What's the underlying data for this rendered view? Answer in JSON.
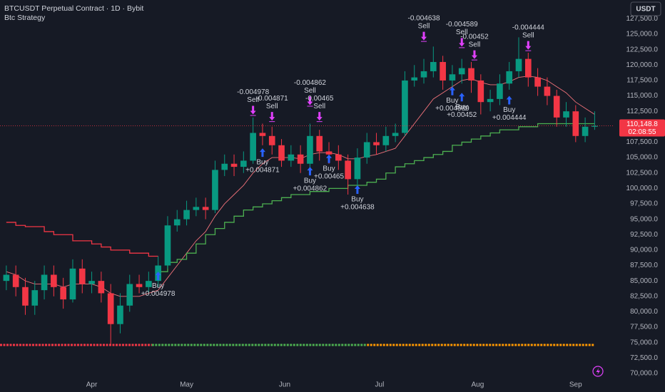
{
  "chart_data": {
    "type": "candlestick",
    "title": "BTCUSDT Perpetual Contract · 1D · Bybit",
    "subtitle": "Btc Strategy",
    "currency": "USDT",
    "x": [
      -27,
      -24,
      -21,
      -18,
      -15,
      -12,
      -9,
      -6,
      -3,
      0,
      3,
      6,
      9,
      12,
      15,
      18,
      21,
      24,
      27,
      30,
      33,
      36,
      39,
      42,
      45,
      48,
      51,
      54,
      57,
      60,
      63,
      66,
      69,
      72,
      75,
      78,
      81,
      84,
      87,
      90,
      93,
      96,
      99,
      102,
      105,
      108,
      111,
      114,
      117,
      120,
      123,
      126,
      129,
      132,
      135,
      138,
      141,
      144,
      147,
      150,
      153,
      156,
      159
    ],
    "open": [
      85000,
      86000,
      84000,
      81000,
      83500,
      86000,
      84000,
      82000,
      87000,
      84500,
      85000,
      83000,
      78000,
      81000,
      84500,
      84000,
      85000,
      87500,
      94000,
      95000,
      96500,
      97000,
      96500,
      103000,
      104000,
      103500,
      104500,
      109000,
      108500,
      107000,
      104500,
      105500,
      104000,
      108500,
      106000,
      105500,
      104500,
      101500,
      105000,
      107500,
      107000,
      108500,
      109000,
      117500,
      118000,
      119000,
      120500,
      117500,
      118500,
      119500,
      117500,
      114000,
      114500,
      117000,
      119000,
      121000,
      118000,
      116500,
      115000,
      111500,
      112500,
      108500,
      110000
    ],
    "high": [
      87500,
      87500,
      85500,
      85000,
      87500,
      87500,
      85500,
      88500,
      88500,
      86500,
      86500,
      84500,
      83000,
      86000,
      86000,
      86500,
      89000,
      95500,
      96500,
      98000,
      98500,
      98500,
      104500,
      105500,
      105500,
      106000,
      111500,
      110500,
      110000,
      108000,
      107000,
      107000,
      110500,
      109500,
      107500,
      107000,
      105500,
      106500,
      109000,
      109000,
      110000,
      110500,
      119000,
      120000,
      121000,
      123000,
      121500,
      120000,
      121000,
      120500,
      118500,
      116000,
      118500,
      120500,
      124500,
      122000,
      119500,
      118000,
      116000,
      114000,
      113500,
      111500,
      112500
    ],
    "low": [
      83500,
      82500,
      79500,
      79500,
      82000,
      82500,
      80500,
      81500,
      83000,
      83000,
      81500,
      74500,
      76500,
      80000,
      83000,
      83000,
      84000,
      87000,
      93000,
      94000,
      95500,
      95000,
      96000,
      102000,
      102000,
      102500,
      104000,
      107000,
      105500,
      103500,
      103500,
      102500,
      103000,
      104500,
      104000,
      103000,
      99000,
      100500,
      104000,
      105500,
      106000,
      107500,
      108500,
      116500,
      117000,
      118000,
      116000,
      116500,
      117000,
      115500,
      112000,
      112500,
      113500,
      116000,
      118000,
      116500,
      115000,
      113500,
      110000,
      110000,
      107500,
      107500,
      109500
    ],
    "close": [
      86000,
      84000,
      81000,
      83500,
      86000,
      84000,
      82000,
      87000,
      84500,
      85000,
      83000,
      78000,
      81000,
      84500,
      84000,
      85000,
      87500,
      94000,
      95000,
      96500,
      97000,
      96500,
      103000,
      104000,
      103500,
      104500,
      109000,
      108500,
      107000,
      104500,
      105500,
      104000,
      108500,
      106000,
      105500,
      104500,
      101500,
      105000,
      107500,
      107000,
      108500,
      109000,
      117500,
      118000,
      119000,
      120500,
      117500,
      118500,
      119500,
      117500,
      114000,
      114500,
      117000,
      119000,
      121000,
      118000,
      116500,
      115000,
      111500,
      112500,
      108500,
      110000,
      110148.8
    ],
    "up_color": "#089981",
    "down_color": "#f23645",
    "lines": [
      {
        "color": "#f0727a",
        "style": "smooth",
        "values": [
          86500,
          86000,
          85000,
          84500,
          84500,
          84500,
          84000,
          84500,
          84500,
          84500,
          84000,
          83000,
          82500,
          82500,
          82500,
          83000,
          83500,
          85500,
          87500,
          89500,
          91500,
          93000,
          95500,
          97500,
          99000,
          100500,
          102500,
          104000,
          105000,
          105000,
          105000,
          104800,
          105500,
          105800,
          105800,
          105500,
          104800,
          104800,
          105200,
          105500,
          106000,
          106500,
          108500,
          110500,
          112500,
          114500,
          115500,
          116500,
          117500,
          117800,
          117200,
          116800,
          116800,
          117300,
          118000,
          118200,
          118000,
          117500,
          116500,
          115500,
          114000,
          113000,
          112000
        ]
      },
      {
        "color": "#f23645",
        "style": "step",
        "values": [
          94500,
          94000,
          93800,
          93800,
          93000,
          92500,
          92500,
          91500,
          91500,
          91000,
          90500,
          90000,
          90000,
          89500,
          89500,
          89000,
          89000,
          null,
          null,
          null,
          null,
          null,
          null,
          null,
          null,
          null,
          null,
          null,
          null,
          null,
          null,
          null,
          null,
          null,
          null,
          null,
          null,
          null,
          null,
          null,
          null,
          null,
          null,
          null,
          null,
          null,
          null,
          null,
          null,
          null,
          null,
          null,
          null,
          null,
          null,
          null,
          null,
          null,
          null,
          null,
          null,
          null,
          null
        ]
      },
      {
        "color": "#4caf50",
        "style": "step",
        "values": [
          null,
          null,
          null,
          null,
          null,
          null,
          null,
          null,
          null,
          null,
          null,
          null,
          null,
          null,
          null,
          null,
          86500,
          88000,
          88500,
          89500,
          91000,
          92500,
          93500,
          94500,
          95500,
          96500,
          97000,
          97500,
          98000,
          98500,
          99000,
          99000,
          99500,
          99500,
          100000,
          100000,
          100500,
          100500,
          101000,
          101500,
          102500,
          103500,
          104000,
          104500,
          105000,
          105500,
          106000,
          107000,
          107500,
          108000,
          108500,
          109000,
          109500,
          109500,
          110000,
          110000,
          110500,
          110500,
          110500,
          110500,
          110500,
          110500,
          110500
        ]
      }
    ],
    "signals": [
      {
        "side": "Buy",
        "day": 21,
        "price": 86500,
        "pnl": "+0.004978"
      },
      {
        "side": "Sell",
        "day": 51,
        "price": 112000,
        "pnl": "-0.004978"
      },
      {
        "side": "Buy",
        "day": 54,
        "price": 106500,
        "pnl": "+0.004871"
      },
      {
        "side": "Sell",
        "day": 57,
        "price": 111000,
        "pnl": "-0.004871"
      },
      {
        "side": "Buy",
        "day": 69,
        "price": 103500,
        "pnl": "+0.004862"
      },
      {
        "side": "Sell",
        "day": 69,
        "price": 113500,
        "pnl": "-0.004862"
      },
      {
        "side": "Sell",
        "day": 72,
        "price": 111000,
        "pnl": "-0.00465"
      },
      {
        "side": "Buy",
        "day": 75,
        "price": 105500,
        "pnl": "+0.00465"
      },
      {
        "side": "Buy",
        "day": 84,
        "price": 100500,
        "pnl": "+0.004638"
      },
      {
        "side": "Sell",
        "day": 105,
        "price": 124000,
        "pnl": "-0.004638"
      },
      {
        "side": "Buy",
        "day": 114,
        "price": 116500,
        "pnl": "+0.004589"
      },
      {
        "side": "Sell",
        "day": 117,
        "price": 123000,
        "pnl": "-0.004589"
      },
      {
        "side": "Buy",
        "day": 117,
        "price": 115500,
        "pnl": "+0.00452"
      },
      {
        "side": "Sell",
        "day": 121,
        "price": 121000,
        "pnl": "-0.00452"
      },
      {
        "side": "Buy",
        "day": 132,
        "price": 115000,
        "pnl": "+0.004444"
      },
      {
        "side": "Sell",
        "day": 138,
        "price": 122500,
        "pnl": "-0.004444"
      }
    ],
    "status_bands": [
      {
        "from": -29,
        "to": 19,
        "color": "#f23645"
      },
      {
        "from": 19,
        "to": 87,
        "color": "#4caf50"
      },
      {
        "from": 87,
        "to": 159,
        "color": "#ff9800"
      }
    ],
    "last_price": {
      "value": 110148.8,
      "label": "110,148.8"
    },
    "countdown": "02:08:55",
    "xlim": [
      -29,
      165
    ],
    "xticks": [
      {
        "value": 0,
        "label": "Apr"
      },
      {
        "value": 30,
        "label": "May"
      },
      {
        "value": 61,
        "label": "Jun"
      },
      {
        "value": 91,
        "label": "Jul"
      },
      {
        "value": 122,
        "label": "Aug"
      },
      {
        "value": 153,
        "label": "Sep"
      }
    ],
    "ylim": [
      69300,
      130550
    ],
    "yticks": [
      {
        "value": 70000,
        "label": "70,000.0"
      },
      {
        "value": 72500,
        "label": "72,500.0"
      },
      {
        "value": 75000,
        "label": "75,000.0"
      },
      {
        "value": 77500,
        "label": "77,500.0"
      },
      {
        "value": 80000,
        "label": "80,000.0"
      },
      {
        "value": 82500,
        "label": "82,500.0"
      },
      {
        "value": 85000,
        "label": "85,000.0"
      },
      {
        "value": 87500,
        "label": "87,500.0"
      },
      {
        "value": 90000,
        "label": "90,000.0"
      },
      {
        "value": 92500,
        "label": "92,500.0"
      },
      {
        "value": 95000,
        "label": "95,000.0"
      },
      {
        "value": 97500,
        "label": "97,500.0"
      },
      {
        "value": 100000,
        "label": "100,000.0"
      },
      {
        "value": 102500,
        "label": "102,500.0"
      },
      {
        "value": 105000,
        "label": "105,000.0"
      },
      {
        "value": 107500,
        "label": "107,500.0"
      },
      {
        "value": 110000,
        "label": "110,000.0"
      },
      {
        "value": 112500,
        "label": "112,500.0"
      },
      {
        "value": 115000,
        "label": "115,000.0"
      },
      {
        "value": 117500,
        "label": "117,500.0"
      },
      {
        "value": 120000,
        "label": "120,000.0"
      },
      {
        "value": 122500,
        "label": "122,500.0"
      },
      {
        "value": 125000,
        "label": "125,000.0"
      },
      {
        "value": 127500,
        "label": "127,500.0"
      }
    ],
    "grid": false
  }
}
